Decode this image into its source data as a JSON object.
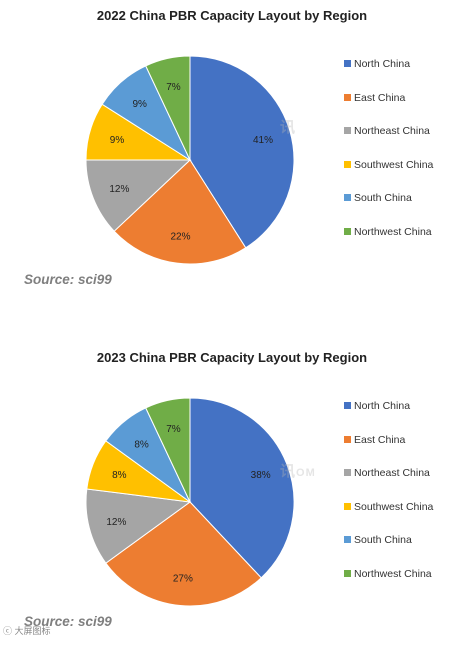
{
  "chart_data": [
    {
      "type": "pie",
      "title": "2022  China PBR Capacity Layout by Region",
      "categories": [
        "North China",
        "East China",
        "Northeast China",
        "Southwest China",
        "South China",
        "Northwest China"
      ],
      "values": [
        41,
        22,
        12,
        9,
        9,
        7
      ],
      "labels": [
        "41%",
        "22%",
        "12%",
        "9%",
        "9%",
        "7%"
      ],
      "colors": [
        "#4472C4",
        "#ED7D31",
        "#A5A5A5",
        "#FFC000",
        "#5B9BD5",
        "#70AD47"
      ],
      "legend_position": "right",
      "source": "Source: sci99"
    },
    {
      "type": "pie",
      "title": "2023  China PBR Capacity Layout by Region",
      "categories": [
        "North China",
        "East China",
        "Northeast China",
        "Southwest China",
        "South China",
        "Northwest China"
      ],
      "values": [
        38,
        27,
        12,
        8,
        8,
        7
      ],
      "labels": [
        "38%",
        "27%",
        "12%",
        "8%",
        "8%",
        "7%"
      ],
      "colors": [
        "#4472C4",
        "#ED7D31",
        "#A5A5A5",
        "#FFC000",
        "#5B9BD5",
        "#70AD47"
      ],
      "legend_position": "right",
      "source": "Source: sci99"
    }
  ],
  "watermark_text": "讯",
  "watermark_suffix": "OM",
  "corner_mark": "ⓒ 大屏图标"
}
